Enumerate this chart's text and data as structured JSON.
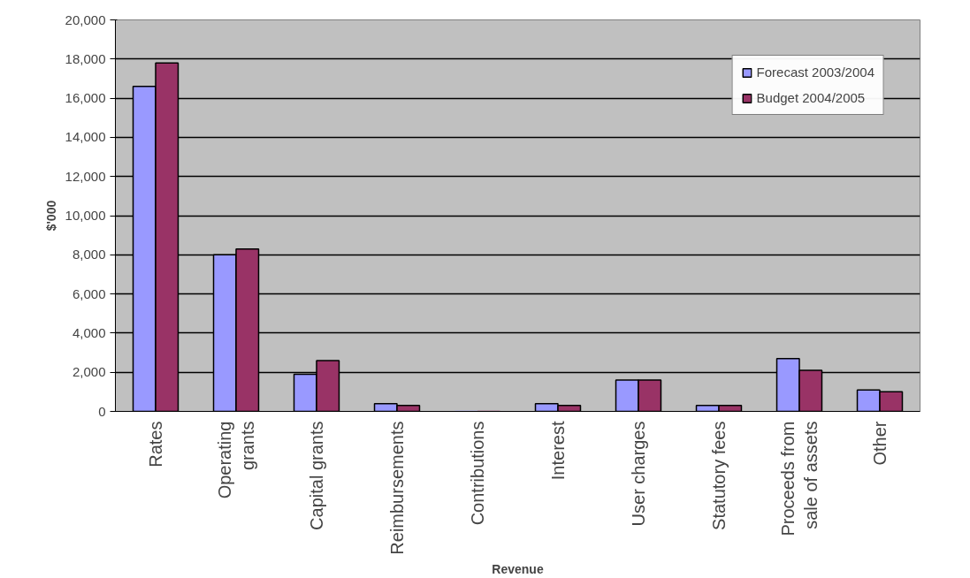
{
  "chart_data": {
    "type": "bar",
    "xlabel": "Revenue",
    "ylabel": "$'000",
    "categories": [
      "Rates",
      "Operating\ngrants",
      "Capital grants",
      "Reimbursements",
      "Contributions",
      "Interest",
      "User charges",
      "Statutory fees",
      "Proceeds from\nsale of assets",
      "Other"
    ],
    "series": [
      {
        "name": "Forecast 2003/2004",
        "color": "#9999ff",
        "values": [
          16600,
          8000,
          1900,
          400,
          0,
          400,
          1600,
          300,
          2700,
          1100
        ]
      },
      {
        "name": "Budget 2004/2005",
        "color": "#993366",
        "values": [
          17800,
          8300,
          2600,
          300,
          0,
          300,
          1600,
          300,
          2100,
          1000
        ]
      }
    ],
    "ylim": [
      0,
      20000
    ],
    "yticks": [
      {
        "value": 0,
        "label": "0"
      },
      {
        "value": 2000,
        "label": "2,000"
      },
      {
        "value": 4000,
        "label": "4,000"
      },
      {
        "value": 6000,
        "label": "6,000"
      },
      {
        "value": 8000,
        "label": "8,000"
      },
      {
        "value": 10000,
        "label": "10,000"
      },
      {
        "value": 12000,
        "label": "12,000"
      },
      {
        "value": 14000,
        "label": "14,000"
      },
      {
        "value": 16000,
        "label": "16,000"
      },
      {
        "value": 18000,
        "label": "18,000"
      },
      {
        "value": 20000,
        "label": "20,000"
      }
    ],
    "grid": "y",
    "legend": "top right"
  }
}
